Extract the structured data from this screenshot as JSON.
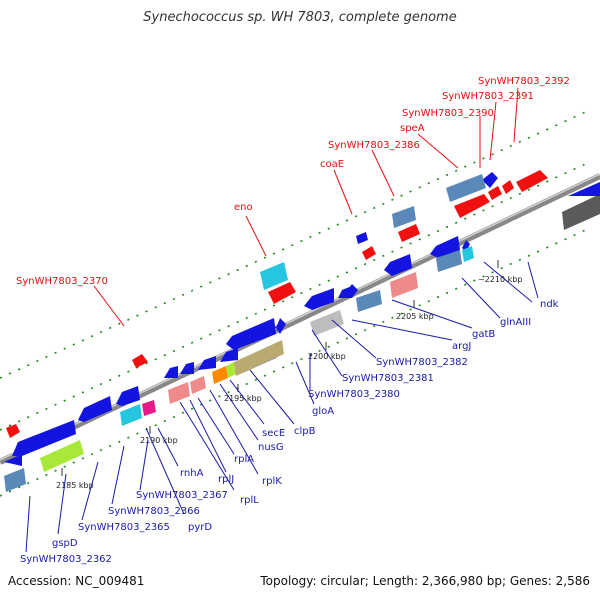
{
  "title": "Synechococcus sp. WH 7803, complete genome",
  "accession": "Accession: NC_009481",
  "summary": "Topology: circular; Length: 2,366,980 bp; Genes: 2,586",
  "colors": {
    "red_label": "#e01010",
    "blue_label": "#1a1aa8",
    "backbone": "#888888",
    "dot": "#1a8a1a"
  },
  "scale_ticks": [
    "2185 kbp",
    "2190 kbp",
    "2195 kbp",
    "2200 kbp",
    "2205 kbp",
    "~2210 kbp"
  ],
  "red_labels": [
    "SynWH7803_2392",
    "SynWH7803_2391",
    "SynWH7803_2390",
    "speA",
    "SynWH7803_2386",
    "coaE",
    "eno",
    "SynWH7803_2370"
  ],
  "blue_labels": [
    "SynWH7803_2362",
    "gspD",
    "SynWH7803_2365",
    "SynWH7803_2366",
    "SynWH7803_2367",
    "pyrD",
    "rnhA",
    "rplL",
    "rplJ",
    "rplA",
    "rplK",
    "nusG",
    "secE",
    "clpB",
    "gloA",
    "SynWH7803_2380",
    "SynWH7803_2381",
    "SynWH7803_2382",
    "argJ",
    "gatB",
    "glnAIII",
    "ndk"
  ]
}
